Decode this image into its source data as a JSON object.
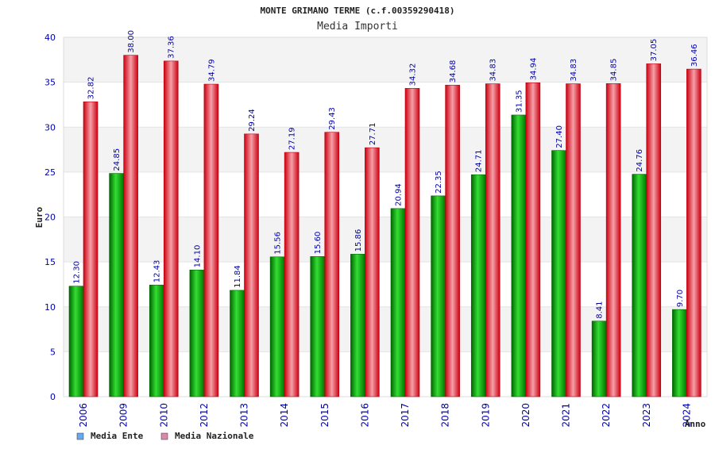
{
  "chart_data": {
    "type": "bar",
    "title": "MONTE GRIMANO TERME (c.f.00359290418)",
    "subtitle": "Media Importi",
    "xlabel": "Anno",
    "ylabel": "Euro",
    "ylim": [
      0,
      40
    ],
    "yticks": [
      0,
      5,
      10,
      15,
      20,
      25,
      30,
      35,
      40
    ],
    "categories": [
      "2006",
      "2009",
      "2010",
      "2012",
      "2013",
      "2014",
      "2015",
      "2016",
      "2017",
      "2018",
      "2019",
      "2020",
      "2021",
      "2022",
      "2023",
      "2024"
    ],
    "series": [
      {
        "name": "Media Ente",
        "color": "#00aa00",
        "values": [
          12.3,
          24.85,
          12.43,
          14.1,
          11.84,
          15.56,
          15.6,
          15.86,
          20.94,
          22.35,
          24.71,
          31.35,
          27.4,
          8.41,
          24.76,
          9.7
        ],
        "labels": [
          "12.30",
          "24.85",
          "12.43",
          "14.10",
          "11.84",
          "15.56",
          "15.60",
          "15.86",
          "20.94",
          "22.35",
          "24.71",
          "31.35",
          "27.40",
          "8.41",
          "24.76",
          "9.70"
        ]
      },
      {
        "name": "Media Nazionale",
        "color": "#ee1122",
        "values": [
          32.82,
          38.0,
          37.36,
          34.79,
          29.24,
          27.19,
          29.43,
          27.71,
          34.32,
          34.68,
          34.83,
          34.94,
          34.83,
          34.85,
          37.05,
          36.46
        ],
        "labels": [
          "32.82",
          "38.00",
          "37.36",
          "34.79",
          "29.24",
          "27.19",
          "29.43",
          "27.71",
          "34.32",
          "34.68",
          "34.83",
          "34.94",
          "34.83",
          "34.85",
          "37.05",
          "36.46"
        ]
      }
    ],
    "legend": [
      {
        "name": "Media Ente",
        "color": "#66aaee"
      },
      {
        "name": "Media Nazionale",
        "color": "#dd88aa"
      }
    ],
    "grid": true,
    "legend_position": "bottom-left"
  }
}
